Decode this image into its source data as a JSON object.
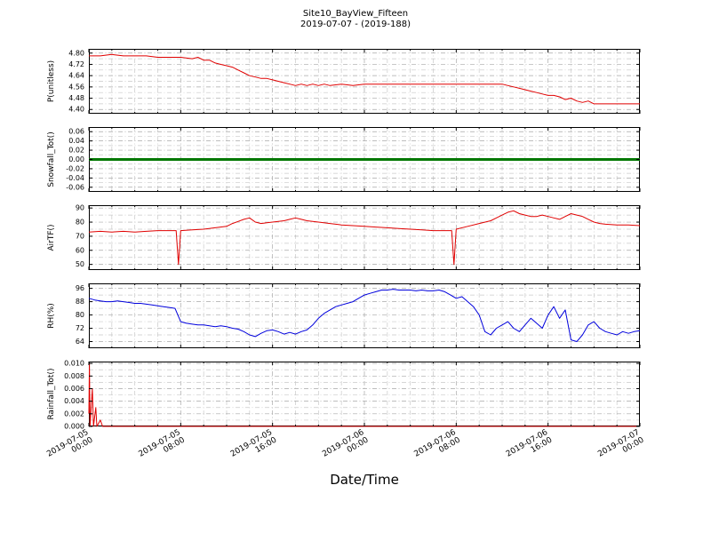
{
  "title": "Site10_BayView_Fifteen",
  "subtitle": "2019-07-07 - (2019-188)",
  "xlabel": "Date/Time",
  "xticks": [
    "2019-07-05 00:00",
    "2019-07-05 08:00",
    "2019-07-05 16:00",
    "2019-07-06 00:00",
    "2019-07-06 08:00",
    "2019-07-06 16:00",
    "2019-07-07 00:00"
  ],
  "xlim_hours": [
    0,
    48
  ],
  "chart_data": [
    {
      "type": "line",
      "name": "P",
      "ylabel": "P(unitless)",
      "color": "#e00000",
      "linewidth": 1,
      "ylim": [
        4.37,
        4.83
      ],
      "yticks": [
        4.4,
        4.48,
        4.56,
        4.64,
        4.72,
        4.8
      ],
      "ytick_labels": [
        "4.40",
        "4.48",
        "4.56",
        "4.64",
        "4.72",
        "4.80"
      ],
      "yminor_step": 0.04,
      "points": [
        [
          0,
          4.78
        ],
        [
          1,
          4.78
        ],
        [
          2,
          4.79
        ],
        [
          3,
          4.78
        ],
        [
          4,
          4.78
        ],
        [
          5,
          4.78
        ],
        [
          6,
          4.77
        ],
        [
          7,
          4.77
        ],
        [
          8,
          4.77
        ],
        [
          9,
          4.76
        ],
        [
          9.5,
          4.77
        ],
        [
          10,
          4.75
        ],
        [
          10.5,
          4.75
        ],
        [
          11,
          4.73
        ],
        [
          11.5,
          4.72
        ],
        [
          12,
          4.71
        ],
        [
          12.5,
          4.7
        ],
        [
          13,
          4.68
        ],
        [
          13.5,
          4.66
        ],
        [
          14,
          4.64
        ],
        [
          14.5,
          4.63
        ],
        [
          15,
          4.62
        ],
        [
          15.5,
          4.62
        ],
        [
          16,
          4.61
        ],
        [
          16.5,
          4.6
        ],
        [
          17,
          4.59
        ],
        [
          17.5,
          4.58
        ],
        [
          18,
          4.57
        ],
        [
          18.5,
          4.58
        ],
        [
          19,
          4.57
        ],
        [
          19.5,
          4.58
        ],
        [
          20,
          4.57
        ],
        [
          20.5,
          4.58
        ],
        [
          21,
          4.57
        ],
        [
          22,
          4.58
        ],
        [
          23,
          4.57
        ],
        [
          24,
          4.58
        ],
        [
          25,
          4.58
        ],
        [
          26,
          4.58
        ],
        [
          27,
          4.58
        ],
        [
          28,
          4.58
        ],
        [
          29,
          4.58
        ],
        [
          30,
          4.58
        ],
        [
          31,
          4.58
        ],
        [
          32,
          4.58
        ],
        [
          33,
          4.58
        ],
        [
          34,
          4.58
        ],
        [
          35,
          4.58
        ],
        [
          36,
          4.58
        ],
        [
          36.5,
          4.57
        ],
        [
          37,
          4.56
        ],
        [
          37.5,
          4.55
        ],
        [
          38,
          4.54
        ],
        [
          38.5,
          4.53
        ],
        [
          39,
          4.52
        ],
        [
          39.5,
          4.51
        ],
        [
          40,
          4.5
        ],
        [
          40.5,
          4.5
        ],
        [
          41,
          4.49
        ],
        [
          41.5,
          4.47
        ],
        [
          42,
          4.48
        ],
        [
          42.5,
          4.46
        ],
        [
          43,
          4.45
        ],
        [
          43.5,
          4.46
        ],
        [
          44,
          4.44
        ],
        [
          45,
          4.44
        ],
        [
          46,
          4.44
        ],
        [
          47,
          4.44
        ],
        [
          48,
          4.44
        ]
      ]
    },
    {
      "type": "line",
      "name": "Snowfall_Tot",
      "ylabel": "Snowfall_Tot()",
      "color": "#007700",
      "linewidth": 3,
      "ylim": [
        -0.07,
        0.07
      ],
      "yticks": [
        -0.06,
        -0.04,
        -0.02,
        0.0,
        0.02,
        0.04,
        0.06
      ],
      "ytick_labels": [
        "-0.06",
        "-0.04",
        "-0.02",
        "0.00",
        "0.02",
        "0.04",
        "0.06"
      ],
      "yminor_step": 0.01,
      "points": [
        [
          0,
          0
        ],
        [
          48,
          0
        ]
      ]
    },
    {
      "type": "line",
      "name": "AirTF",
      "ylabel": "AirTF()",
      "color": "#e00000",
      "linewidth": 1,
      "ylim": [
        46,
        92
      ],
      "yticks": [
        50,
        60,
        70,
        80,
        90
      ],
      "ytick_labels": [
        "50",
        "60",
        "70",
        "80",
        "90"
      ],
      "yminor_step": 5,
      "points": [
        [
          0,
          73
        ],
        [
          1,
          73.5
        ],
        [
          2,
          73
        ],
        [
          3,
          73.5
        ],
        [
          4,
          73
        ],
        [
          5,
          73.5
        ],
        [
          6,
          74
        ],
        [
          7,
          74
        ],
        [
          7.6,
          74
        ],
        [
          7.8,
          50
        ],
        [
          8,
          74
        ],
        [
          9,
          74.5
        ],
        [
          10,
          75
        ],
        [
          11,
          76
        ],
        [
          12,
          77
        ],
        [
          12.5,
          79
        ],
        [
          13,
          80.5
        ],
        [
          13.5,
          82
        ],
        [
          14,
          83
        ],
        [
          14.5,
          80
        ],
        [
          15,
          79
        ],
        [
          15.5,
          79.5
        ],
        [
          16,
          80
        ],
        [
          17,
          81
        ],
        [
          17.5,
          82
        ],
        [
          18,
          83
        ],
        [
          18.5,
          82
        ],
        [
          19,
          81
        ],
        [
          20,
          80
        ],
        [
          21,
          79
        ],
        [
          22,
          78
        ],
        [
          23,
          77.5
        ],
        [
          24,
          77
        ],
        [
          25,
          76.5
        ],
        [
          26,
          76
        ],
        [
          27,
          75.5
        ],
        [
          28,
          75
        ],
        [
          29,
          74.5
        ],
        [
          30,
          74
        ],
        [
          31,
          74
        ],
        [
          31.6,
          74
        ],
        [
          31.8,
          50
        ],
        [
          32,
          75
        ],
        [
          33,
          77
        ],
        [
          34,
          79
        ],
        [
          35,
          81
        ],
        [
          35.5,
          83
        ],
        [
          36,
          85
        ],
        [
          36.5,
          87
        ],
        [
          37,
          88
        ],
        [
          37.5,
          86
        ],
        [
          38,
          85
        ],
        [
          38.5,
          84
        ],
        [
          39,
          84
        ],
        [
          39.5,
          85
        ],
        [
          40,
          84
        ],
        [
          40.5,
          83
        ],
        [
          41,
          82
        ],
        [
          41.5,
          84
        ],
        [
          42,
          86
        ],
        [
          42.5,
          85
        ],
        [
          43,
          84
        ],
        [
          43.5,
          82
        ],
        [
          44,
          80
        ],
        [
          44.5,
          79
        ],
        [
          45,
          78.5
        ],
        [
          46,
          78
        ],
        [
          47,
          78
        ],
        [
          48,
          77.5
        ]
      ]
    },
    {
      "type": "line",
      "name": "RH",
      "ylabel": "RH(%)",
      "color": "#0000dd",
      "linewidth": 1,
      "ylim": [
        60,
        99
      ],
      "yticks": [
        64,
        72,
        80,
        88,
        96
      ],
      "ytick_labels": [
        "64",
        "72",
        "80",
        "88",
        "96"
      ],
      "yminor_step": 4,
      "points": [
        [
          0,
          90
        ],
        [
          0.5,
          89
        ],
        [
          1,
          88.5
        ],
        [
          1.5,
          88
        ],
        [
          2,
          88
        ],
        [
          2.5,
          88.5
        ],
        [
          3,
          88
        ],
        [
          3.5,
          87.5
        ],
        [
          4,
          87
        ],
        [
          4.5,
          87
        ],
        [
          5,
          86.5
        ],
        [
          5.5,
          86
        ],
        [
          6,
          85.5
        ],
        [
          6.5,
          85
        ],
        [
          7,
          84.5
        ],
        [
          7.5,
          84
        ],
        [
          8,
          76
        ],
        [
          8.5,
          75
        ],
        [
          9,
          74.5
        ],
        [
          9.5,
          74
        ],
        [
          10,
          74
        ],
        [
          10.5,
          73.5
        ],
        [
          11,
          73
        ],
        [
          11.5,
          73.5
        ],
        [
          12,
          73
        ],
        [
          12.5,
          72
        ],
        [
          13,
          71.5
        ],
        [
          13.5,
          70
        ],
        [
          14,
          68
        ],
        [
          14.5,
          67
        ],
        [
          15,
          69
        ],
        [
          15.5,
          70.5
        ],
        [
          16,
          71
        ],
        [
          16.5,
          70
        ],
        [
          17,
          68.5
        ],
        [
          17.5,
          69.5
        ],
        [
          18,
          68.5
        ],
        [
          18.5,
          70
        ],
        [
          19,
          71
        ],
        [
          19.5,
          74
        ],
        [
          20,
          78
        ],
        [
          20.5,
          81
        ],
        [
          21,
          83
        ],
        [
          21.5,
          85
        ],
        [
          22,
          86
        ],
        [
          22.5,
          87
        ],
        [
          23,
          88
        ],
        [
          23.5,
          90
        ],
        [
          24,
          92
        ],
        [
          24.5,
          93
        ],
        [
          25,
          94
        ],
        [
          25.5,
          95
        ],
        [
          26,
          95
        ],
        [
          26.5,
          95.5
        ],
        [
          27,
          95
        ],
        [
          27.5,
          95
        ],
        [
          28,
          95
        ],
        [
          28.5,
          94.5
        ],
        [
          29,
          95
        ],
        [
          29.5,
          94.5
        ],
        [
          30,
          94.5
        ],
        [
          30.5,
          95
        ],
        [
          31,
          94
        ],
        [
          31.5,
          92
        ],
        [
          32,
          90
        ],
        [
          32.5,
          91
        ],
        [
          33,
          88
        ],
        [
          33.5,
          85
        ],
        [
          34,
          80
        ],
        [
          34.5,
          70
        ],
        [
          35,
          68
        ],
        [
          35.5,
          72
        ],
        [
          36,
          74
        ],
        [
          36.5,
          76
        ],
        [
          37,
          72
        ],
        [
          37.5,
          70
        ],
        [
          38,
          74
        ],
        [
          38.5,
          78
        ],
        [
          39,
          75
        ],
        [
          39.5,
          72
        ],
        [
          40,
          80
        ],
        [
          40.5,
          85
        ],
        [
          41,
          78
        ],
        [
          41.5,
          83
        ],
        [
          42,
          65
        ],
        [
          42.5,
          64
        ],
        [
          43,
          68
        ],
        [
          43.5,
          74
        ],
        [
          44,
          76
        ],
        [
          44.5,
          72
        ],
        [
          45,
          70
        ],
        [
          45.5,
          69
        ],
        [
          46,
          68
        ],
        [
          46.5,
          70
        ],
        [
          47,
          69
        ],
        [
          47.5,
          70
        ],
        [
          48,
          70.5
        ]
      ]
    },
    {
      "type": "line",
      "name": "Rainfall_Tot",
      "ylabel": "Rainfall_Tot()",
      "color": "#e00000",
      "linewidth": 1,
      "ylim": [
        0,
        0.0103
      ],
      "yticks": [
        0.0,
        0.002,
        0.004,
        0.006,
        0.008,
        0.01
      ],
      "ytick_labels": [
        "0.000",
        "0.002",
        "0.004",
        "0.006",
        "0.008",
        "0.010"
      ],
      "yminor_step": 0.001,
      "points": [
        [
          0,
          0.002
        ],
        [
          0.05,
          0.01
        ],
        [
          0.1,
          0
        ],
        [
          0.3,
          0.006
        ],
        [
          0.4,
          0
        ],
        [
          0.6,
          0.003
        ],
        [
          0.7,
          0
        ],
        [
          1,
          0.001
        ],
        [
          1.2,
          0
        ],
        [
          5,
          0
        ],
        [
          10,
          0
        ],
        [
          20,
          0
        ],
        [
          30,
          0
        ],
        [
          40,
          0
        ],
        [
          48,
          0
        ]
      ]
    }
  ]
}
